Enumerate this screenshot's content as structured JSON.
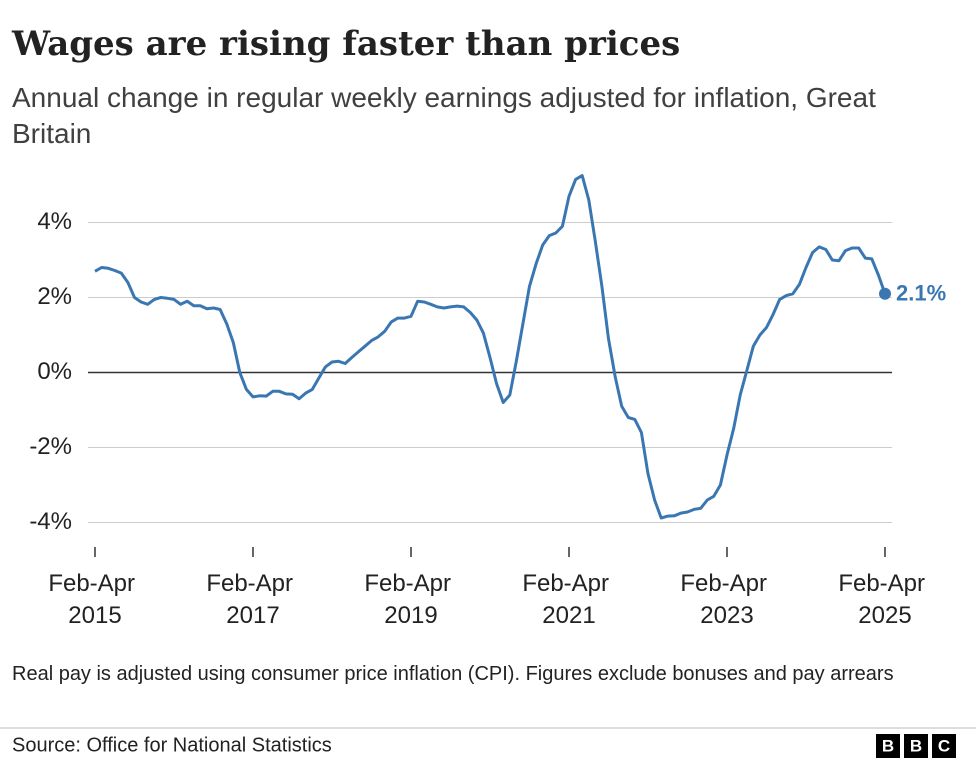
{
  "chart_data": {
    "type": "line",
    "title": "Wages are rising faster than prices",
    "subtitle": "Annual change in regular weekly earnings adjusted for inflation, Great Britain",
    "categories": [
      "Feb-Apr 2015",
      null,
      null,
      null,
      null,
      null,
      null,
      null,
      null,
      null,
      null,
      null,
      null,
      null,
      null,
      null,
      null,
      null,
      null,
      null,
      null,
      null,
      null,
      null,
      "Feb-Apr 2017",
      null,
      null,
      null,
      null,
      null,
      null,
      null,
      null,
      null,
      null,
      null,
      null,
      null,
      null,
      null,
      null,
      null,
      null,
      null,
      null,
      null,
      null,
      null,
      "Feb-Apr 2019",
      null,
      null,
      null,
      null,
      null,
      null,
      null,
      null,
      null,
      null,
      null,
      null,
      null,
      null,
      null,
      null,
      null,
      null,
      null,
      null,
      null,
      null,
      null,
      "Feb-Apr 2021",
      null,
      null,
      null,
      null,
      null,
      null,
      null,
      null,
      null,
      null,
      null,
      null,
      null,
      null,
      null,
      null,
      null,
      null,
      null,
      null,
      null,
      null,
      null,
      "Feb-Apr 2023",
      null,
      null,
      null,
      null,
      null,
      null,
      null,
      null,
      null,
      null,
      null,
      null,
      null,
      null,
      null,
      null,
      null,
      null,
      null,
      null,
      null,
      null,
      null,
      "Feb-Apr 2025"
    ],
    "series": [
      {
        "color": "#3a77b2",
        "values": [
          2.7,
          2.8,
          2.78,
          2.72,
          2.65,
          2.4,
          2.0,
          1.88,
          1.82,
          1.95,
          2.0,
          1.98,
          1.95,
          1.82,
          1.9,
          1.78,
          1.78,
          1.7,
          1.72,
          1.68,
          1.3,
          0.8,
          0.0,
          -0.45,
          -0.65,
          -0.62,
          -0.63,
          -0.5,
          -0.5,
          -0.57,
          -0.58,
          -0.7,
          -0.55,
          -0.45,
          -0.15,
          0.15,
          0.28,
          0.3,
          0.24,
          0.4,
          0.55,
          0.7,
          0.85,
          0.95,
          1.1,
          1.35,
          1.45,
          1.45,
          1.5,
          1.9,
          1.88,
          1.82,
          1.75,
          1.72,
          1.75,
          1.77,
          1.75,
          1.6,
          1.4,
          1.05,
          0.4,
          -0.3,
          -0.8,
          -0.6,
          0.3,
          1.3,
          2.3,
          2.9,
          3.4,
          3.65,
          3.72,
          3.9,
          4.7,
          5.15,
          5.25,
          4.6,
          3.5,
          2.3,
          0.9,
          -0.1,
          -0.9,
          -1.2,
          -1.25,
          -1.6,
          -2.7,
          -3.4,
          -3.88,
          -3.83,
          -3.82,
          -3.75,
          -3.72,
          -3.65,
          -3.62,
          -3.4,
          -3.3,
          -3.0,
          -2.2,
          -1.5,
          -0.6,
          0.05,
          0.7,
          1.0,
          1.2,
          1.55,
          1.95,
          2.05,
          2.1,
          2.35,
          2.8,
          3.2,
          3.35,
          3.28,
          3.0,
          2.98,
          3.25,
          3.32,
          3.32,
          3.05,
          3.03,
          2.6,
          2.1
        ]
      }
    ],
    "last_value_label": "2.1%",
    "ylim": [
      -4.6,
      5.4
    ],
    "yticks": [
      {
        "value": -4,
        "label": "-4%"
      },
      {
        "value": -2,
        "label": "-2%"
      },
      {
        "value": 0,
        "label": "0%"
      },
      {
        "value": 2,
        "label": "2%"
      },
      {
        "value": 4,
        "label": "4%"
      }
    ],
    "grid": true,
    "note": "Real pay is adjusted using consumer price inflation (CPI). Figures exclude bonuses and pay arrears",
    "source": "Source: Office for National Statistics",
    "logo": [
      "B",
      "B",
      "C"
    ]
  }
}
